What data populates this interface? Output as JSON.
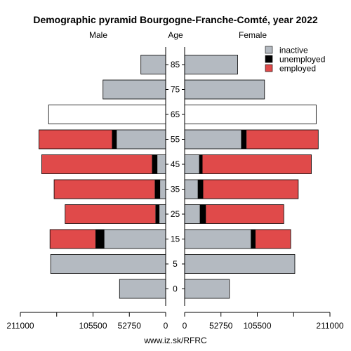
{
  "chart_data": {
    "type": "bar",
    "title": "Demographic pyramid Bourgogne-Franche-Comté, year 2022",
    "left_label": "Male",
    "center_label": "Age",
    "right_label": "Female",
    "age_groups": [
      "85",
      "75",
      "65",
      "55",
      "45",
      "35",
      "25",
      "15",
      "5",
      "0"
    ],
    "max": 211000,
    "left_ticks": [
      "211000",
      "105500",
      "52750",
      "0"
    ],
    "right_ticks": [
      "0",
      "52750",
      "105500",
      "211000"
    ],
    "legend": [
      {
        "key": "inactive",
        "label": "inactive",
        "color": "#b4bac1"
      },
      {
        "key": "unemployed",
        "label": "unemployed",
        "color": "#000000"
      },
      {
        "key": "employed",
        "label": "employed",
        "color": "#e04a4a"
      }
    ],
    "plain_color": "#ffffff",
    "male": [
      {
        "age": "85",
        "inactive": 36000,
        "unemployed": 0,
        "employed": 0
      },
      {
        "age": "75",
        "inactive": 91000,
        "unemployed": 0,
        "employed": 0
      },
      {
        "age": "65",
        "inactive": 0,
        "unemployed": 0,
        "employed": 0,
        "total": 170000
      },
      {
        "age": "55",
        "inactive": 71000,
        "unemployed": 7000,
        "employed": 106000
      },
      {
        "age": "45",
        "inactive": 12000,
        "unemployed": 8000,
        "employed": 160000
      },
      {
        "age": "35",
        "inactive": 8000,
        "unemployed": 8000,
        "employed": 146000
      },
      {
        "age": "25",
        "inactive": 9000,
        "unemployed": 6000,
        "employed": 131000
      },
      {
        "age": "15",
        "inactive": 89000,
        "unemployed": 13000,
        "employed": 66000
      },
      {
        "age": "5",
        "inactive": 167000,
        "unemployed": 0,
        "employed": 0
      },
      {
        "age": "0",
        "inactive": 67000,
        "unemployed": 0,
        "employed": 0
      }
    ],
    "female": [
      {
        "age": "85",
        "inactive": 77000,
        "unemployed": 0,
        "employed": 0
      },
      {
        "age": "75",
        "inactive": 116000,
        "unemployed": 0,
        "employed": 0
      },
      {
        "age": "65",
        "inactive": 0,
        "unemployed": 0,
        "employed": 0,
        "total": 191000
      },
      {
        "age": "55",
        "inactive": 82000,
        "unemployed": 8000,
        "employed": 104000
      },
      {
        "age": "45",
        "inactive": 21000,
        "unemployed": 5000,
        "employed": 158000
      },
      {
        "age": "35",
        "inactive": 19000,
        "unemployed": 8000,
        "employed": 138000
      },
      {
        "age": "25",
        "inactive": 22000,
        "unemployed": 9000,
        "employed": 113000
      },
      {
        "age": "15",
        "inactive": 96000,
        "unemployed": 7000,
        "employed": 51000
      },
      {
        "age": "5",
        "inactive": 160000,
        "unemployed": 0,
        "employed": 0
      },
      {
        "age": "0",
        "inactive": 65000,
        "unemployed": 0,
        "employed": 0
      }
    ]
  },
  "source": "www.iz.sk/RFRC"
}
